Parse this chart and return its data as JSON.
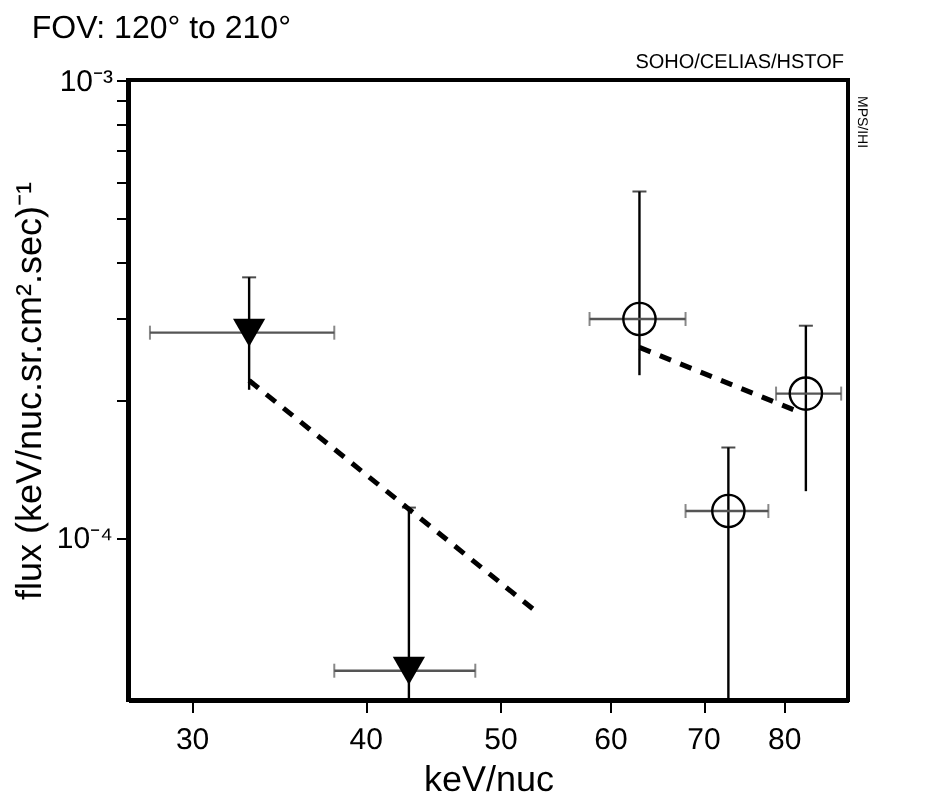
{
  "chart_data": {
    "type": "scatter",
    "title": "FOV: 120° to 210°",
    "xlabel": "keV/nuc",
    "ylabel": "flux (keV/nuc.sr.cm².sec)⁻¹",
    "annotations": [
      "SOHO/CELIAS/HSTOF",
      "MPS/IHI"
    ],
    "log": "xy",
    "grid": false,
    "xlim": [
      27,
      89
    ],
    "xticks": [
      30,
      40,
      50,
      60,
      70,
      80
    ],
    "ylim": [
      4.4e-05,
      0.001
    ],
    "yticks": [
      {
        "value": 0.0001,
        "label": "10⁻⁴"
      },
      {
        "value": 0.0002,
        "label": null
      },
      {
        "value": 0.0003,
        "label": null
      },
      {
        "value": 0.0004,
        "label": null
      },
      {
        "value": 0.0005,
        "label": null
      },
      {
        "value": 0.0006,
        "label": null
      },
      {
        "value": 0.0007,
        "label": null
      },
      {
        "value": 0.0008,
        "label": null
      },
      {
        "value": 0.0009,
        "label": null
      },
      {
        "value": 0.001,
        "label": "10⁻³"
      }
    ],
    "series": [
      {
        "type": "scatter",
        "marker": "triangle",
        "color": "#000000",
        "x": [
          33,
          43
        ],
        "values": [
          0.00028,
          5.1e-05
        ],
        "errors": [
          [
            0.00021,
            0.00037
          ],
          [
            4.4e-05,
            0.000116
          ]
        ],
        "xerrors": [
          [
            28,
            38
          ],
          [
            38,
            48
          ]
        ]
      },
      {
        "type": "scatter",
        "marker": "circle",
        "color": "#000000",
        "x": [
          63,
          73,
          83
        ],
        "values": [
          0.0003,
          0.000114,
          0.000206
        ],
        "errors": [
          [
            0.000226,
            0.00057
          ],
          [
            4.4e-05,
            0.000157
          ],
          [
            0.000126,
            0.00029
          ]
        ],
        "xerrors": [
          [
            58,
            68
          ],
          [
            68,
            78
          ],
          [
            79,
            88
          ]
        ]
      },
      {
        "type": "line",
        "line_style": "dashed",
        "color": "#000000",
        "x": [
          33,
          53
        ],
        "values": [
          0.00022,
          6.9e-05
        ]
      },
      {
        "type": "line",
        "line_style": "dashed",
        "color": "#000000",
        "x": [
          63,
          82
        ],
        "values": [
          0.00026,
          0.000188
        ]
      }
    ]
  }
}
